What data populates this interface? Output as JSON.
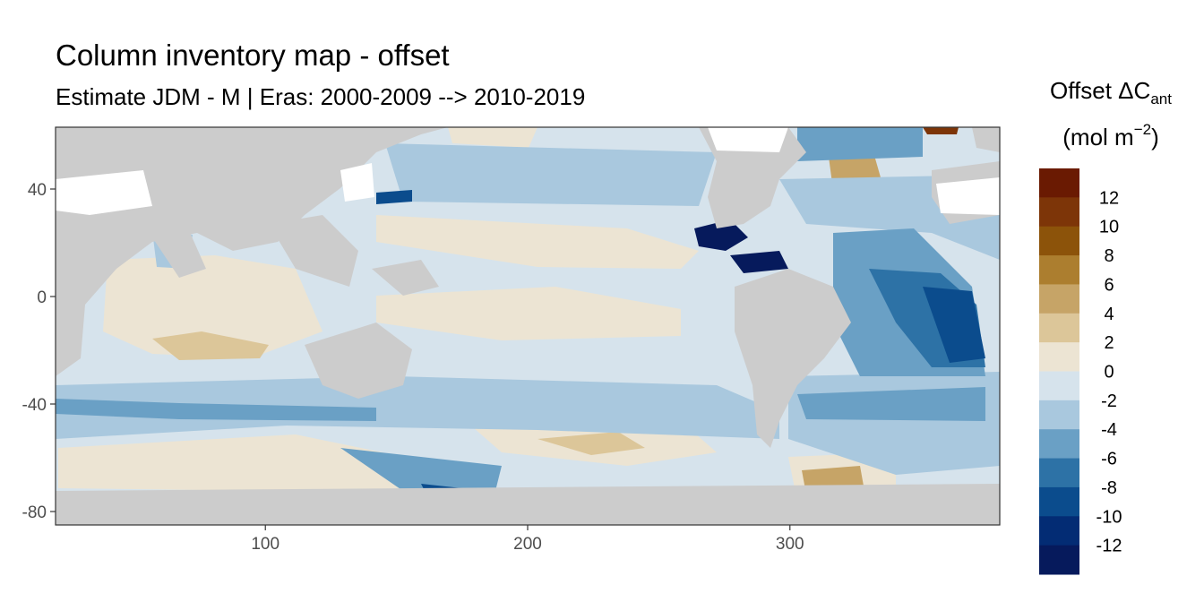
{
  "title": "Column inventory map - offset",
  "subtitle": "Estimate JDM - M | Eras: 2000-2009 --> 2010-2019",
  "chart_data": {
    "type": "heatmap",
    "title": "Column inventory map - offset",
    "subtitle": "Estimate JDM - M | Eras: 2000-2009 --> 2010-2019",
    "xlabel": "",
    "ylabel": "",
    "xlim": [
      20,
      380
    ],
    "ylim": [
      -85,
      63
    ],
    "x_ticks": [
      100,
      200,
      300
    ],
    "y_ticks": [
      40,
      0,
      -40,
      -80
    ],
    "grid": false,
    "land_color": "#cccccc",
    "legend": {
      "title_main": "Offset ΔC",
      "title_sub": "ant",
      "unit_main": "(mol m",
      "unit_sup": "−2",
      "unit_close": ")",
      "placement": "right",
      "labels": [
        "12",
        "10",
        "8",
        "6",
        "4",
        "2",
        "0",
        "-2",
        "-4",
        "-6",
        "-8",
        "-10",
        "-12"
      ],
      "colors": [
        "#6a1a02",
        "#7d3508",
        "#8c530a",
        "#ac7e2f",
        "#c6a467",
        "#dcc699",
        "#ece4d3",
        "#d6e3ec",
        "#a9c8de",
        "#6aa0c5",
        "#2d72a6",
        "#0b4c8d",
        "#032c74",
        "#061a5c"
      ]
    }
  }
}
